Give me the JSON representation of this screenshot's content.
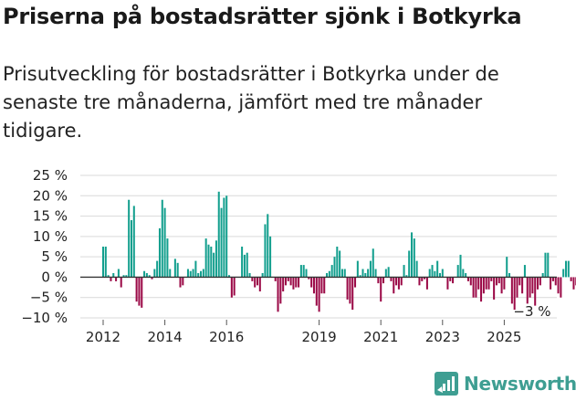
{
  "header": {
    "title": "Priserna på bostadsrätter sjönk i Botkyrka",
    "subtitle": "Prisutveckling för bostadsrätter i Botkyrka under de senaste tre månaderna, jämfört med tre månader tidigare."
  },
  "brand": {
    "name": "Newsworthy"
  },
  "colors": {
    "positive": "#139f8e",
    "negative": "#9b0a47",
    "grid": "#d9d9d9",
    "zero_line": "#333333",
    "brand": "#3e9e92"
  },
  "chart_data": {
    "type": "bar",
    "title": "Priserna på bostadsrätter sjönk i Botkyrka",
    "xlabel": "",
    "ylabel": "",
    "ylim": [
      -10,
      25
    ],
    "yticks": [
      25,
      20,
      15,
      10,
      5,
      0,
      -5,
      -10
    ],
    "ytick_labels": [
      "25 %",
      "20 %",
      "15 %",
      "10 %",
      "5 %",
      "0 %",
      "−5 %",
      "−10 %"
    ],
    "xtick_labels": [
      "2012",
      "2014",
      "2016",
      "2019",
      "2021",
      "2023",
      "2025"
    ],
    "xtick_positions": [
      2012.0,
      2014.0,
      2016.0,
      2019.0,
      2021.0,
      2023.0,
      2025.0
    ],
    "x_start": 2012.0,
    "months_per_bar": 1,
    "annotation": {
      "text": "−3 %",
      "value": -3
    },
    "values": [
      7.5,
      7.5,
      0.5,
      -1,
      1,
      -1,
      2,
      -2.5,
      0.5,
      0.5,
      19,
      14,
      17.5,
      -6,
      -7,
      -7.5,
      1.5,
      1,
      0.5,
      -0.5,
      2,
      4,
      12,
      19,
      17,
      9.5,
      2,
      0,
      4.5,
      3.5,
      -2.5,
      -2,
      0,
      2,
      1.5,
      2,
      4,
      1,
      1.5,
      2,
      9.5,
      8,
      7.5,
      6,
      9,
      21,
      17,
      19.5,
      20,
      0.5,
      -5,
      -4.5,
      0,
      0,
      7.5,
      5.5,
      6,
      1,
      -1,
      -2.5,
      -2,
      -3.5,
      1,
      13,
      15.5,
      10,
      0,
      -1,
      -8.5,
      -6.5,
      -3.5,
      -2,
      -1,
      -2,
      -3,
      -2.5,
      -2.5,
      3,
      3,
      2,
      -0.5,
      -2.5,
      -4,
      -7,
      -8.5,
      -4,
      -4,
      1,
      1.5,
      3,
      5,
      7.5,
      6.5,
      2,
      2,
      -5.5,
      -6.5,
      -8,
      -2.5,
      4,
      0.5,
      2,
      1,
      2,
      4,
      7,
      2,
      -1.5,
      -6,
      -1.5,
      2,
      2.5,
      -1,
      -4,
      -2,
      -3,
      -2,
      3,
      0.5,
      6.5,
      11,
      9.5,
      4,
      -2,
      -1,
      -0.5,
      -3,
      2,
      3,
      1.5,
      4,
      1,
      2,
      0,
      -3,
      -1,
      -1.5,
      0,
      3,
      5.5,
      2,
      1,
      -1,
      -2,
      -5,
      -5,
      -3,
      -6,
      -4,
      -3,
      -3,
      -1,
      -5.5,
      -2,
      -1.5,
      -4,
      -3,
      5,
      1,
      -6.5,
      -8,
      -5,
      -2,
      -4,
      3,
      -6.5,
      -5,
      -4,
      -7,
      -3,
      -2,
      1,
      6,
      6,
      -3,
      -1,
      -2,
      -4,
      -5,
      2,
      4,
      4,
      -1,
      -3,
      -2,
      -1,
      1,
      2,
      3,
      -1,
      -2,
      -3,
      -3
    ]
  }
}
